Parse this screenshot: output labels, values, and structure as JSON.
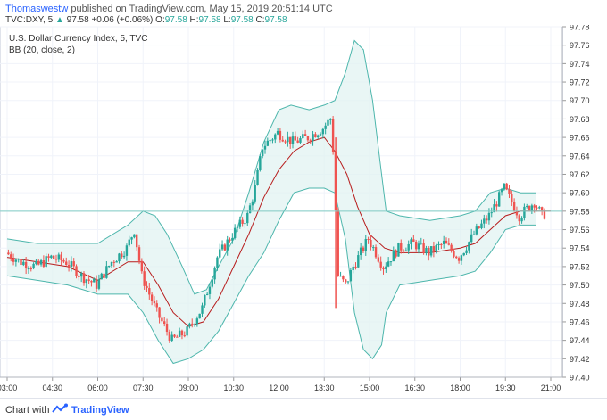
{
  "header": {
    "author": "Thomaswestw",
    "publish_text": "published on TradingView.com, May 15, 2019 20:51:14 UTC",
    "symbol": "TVC:DXY, 5",
    "last": "97.58",
    "change": "+0.06 (+0.06%)",
    "o_label": "O:",
    "o": "97.58",
    "h_label": "H:",
    "h": "97.58",
    "l_label": "L:",
    "l": "97.58",
    "c_label": "C:",
    "c": "97.58"
  },
  "legend": {
    "title": "U.S. Dollar Currency Index, 5, TVC",
    "indicator": "BB (20, close, 2)"
  },
  "footer": {
    "made_with": "Chart with",
    "brand": "TradingView"
  },
  "colors": {
    "up": "#26a69a",
    "down": "#ef5350",
    "bb_band": "#4db6ac",
    "bb_fill": "#e0f2f1",
    "basis": "#b71c1c",
    "price_line": "#80cbc4"
  },
  "chart_data": {
    "type": "candlestick",
    "title": "U.S. Dollar Currency Index, 5, TVC",
    "x_ticks": [
      "03:00",
      "04:30",
      "06:00",
      "07:30",
      "09:00",
      "10:30",
      "12:00",
      "13:30",
      "15:00",
      "16:30",
      "18:00",
      "19:30",
      "21:00"
    ],
    "y_ticks": [
      "97.78",
      "97.76",
      "97.74",
      "97.72",
      "97.70",
      "97.68",
      "97.66",
      "97.64",
      "97.62",
      "97.60",
      "97.58",
      "97.56",
      "97.54",
      "97.52",
      "97.50",
      "97.48",
      "97.46",
      "97.44",
      "97.42",
      "97.40"
    ],
    "ylim": [
      97.4,
      97.78
    ],
    "xlim_hours": [
      3,
      21
    ],
    "last_price": 97.58,
    "price_series": [
      [
        3.0,
        97.535
      ],
      [
        3.5,
        97.525
      ],
      [
        4.0,
        97.52
      ],
      [
        4.5,
        97.53
      ],
      [
        5.0,
        97.525
      ],
      [
        5.5,
        97.51
      ],
      [
        6.0,
        97.5
      ],
      [
        6.5,
        97.525
      ],
      [
        7.0,
        97.54
      ],
      [
        7.25,
        97.56
      ],
      [
        7.5,
        97.51
      ],
      [
        8.0,
        97.47
      ],
      [
        8.5,
        97.44
      ],
      [
        9.0,
        97.45
      ],
      [
        9.5,
        97.475
      ],
      [
        10.0,
        97.53
      ],
      [
        10.5,
        97.555
      ],
      [
        11.0,
        97.575
      ],
      [
        11.25,
        97.605
      ],
      [
        11.5,
        97.65
      ],
      [
        12.0,
        97.665
      ],
      [
        12.5,
        97.655
      ],
      [
        13.0,
        97.66
      ],
      [
        13.5,
        97.67
      ],
      [
        13.75,
        97.68
      ],
      [
        13.85,
        97.64
      ],
      [
        14.0,
        97.51
      ],
      [
        14.25,
        97.5
      ],
      [
        14.5,
        97.52
      ],
      [
        15.0,
        97.55
      ],
      [
        15.5,
        97.52
      ],
      [
        16.0,
        97.54
      ],
      [
        16.5,
        97.545
      ],
      [
        17.0,
        97.535
      ],
      [
        17.5,
        97.545
      ],
      [
        18.0,
        97.53
      ],
      [
        18.5,
        97.555
      ],
      [
        19.0,
        97.575
      ],
      [
        19.5,
        97.605
      ],
      [
        19.75,
        97.59
      ],
      [
        20.0,
        97.575
      ],
      [
        20.5,
        97.59
      ],
      [
        20.75,
        97.575
      ],
      [
        21.0,
        97.58
      ]
    ],
    "bb_basis": [
      [
        3.0,
        97.53
      ],
      [
        4.0,
        97.525
      ],
      [
        5.0,
        97.52
      ],
      [
        6.0,
        97.505
      ],
      [
        7.0,
        97.525
      ],
      [
        7.5,
        97.525
      ],
      [
        8.0,
        97.5
      ],
      [
        8.5,
        97.47
      ],
      [
        9.0,
        97.455
      ],
      [
        9.5,
        97.46
      ],
      [
        10.0,
        97.485
      ],
      [
        10.5,
        97.52
      ],
      [
        11.0,
        97.555
      ],
      [
        11.5,
        97.595
      ],
      [
        12.0,
        97.625
      ],
      [
        12.5,
        97.645
      ],
      [
        13.0,
        97.655
      ],
      [
        13.5,
        97.66
      ],
      [
        13.85,
        97.645
      ],
      [
        14.25,
        97.62
      ],
      [
        14.6,
        97.585
      ],
      [
        15.0,
        97.555
      ],
      [
        15.5,
        97.54
      ],
      [
        16.0,
        97.535
      ],
      [
        17.0,
        97.535
      ],
      [
        18.0,
        97.54
      ],
      [
        18.5,
        97.545
      ],
      [
        19.0,
        97.56
      ],
      [
        19.5,
        97.575
      ],
      [
        20.0,
        97.58
      ],
      [
        20.5,
        97.58
      ],
      [
        21.0,
        97.58
      ]
    ],
    "bb_upper": [
      [
        3.0,
        97.55
      ],
      [
        4.0,
        97.545
      ],
      [
        5.0,
        97.545
      ],
      [
        6.0,
        97.545
      ],
      [
        7.0,
        97.565
      ],
      [
        7.5,
        97.58
      ],
      [
        7.9,
        97.575
      ],
      [
        8.3,
        97.555
      ],
      [
        8.8,
        97.52
      ],
      [
        9.2,
        97.49
      ],
      [
        9.6,
        97.495
      ],
      [
        10.0,
        97.52
      ],
      [
        10.5,
        97.55
      ],
      [
        11.0,
        97.6
      ],
      [
        11.5,
        97.655
      ],
      [
        12.0,
        97.69
      ],
      [
        12.4,
        97.695
      ],
      [
        13.0,
        97.69
      ],
      [
        13.5,
        97.695
      ],
      [
        13.85,
        97.7
      ],
      [
        14.2,
        97.73
      ],
      [
        14.5,
        97.765
      ],
      [
        14.8,
        97.755
      ],
      [
        15.1,
        97.7
      ],
      [
        15.4,
        97.62
      ],
      [
        15.55,
        97.58
      ],
      [
        16.0,
        97.575
      ],
      [
        17.0,
        97.57
      ],
      [
        18.0,
        97.575
      ],
      [
        18.5,
        97.58
      ],
      [
        19.0,
        97.6
      ],
      [
        19.5,
        97.605
      ],
      [
        20.0,
        97.6
      ],
      [
        20.5,
        97.6
      ]
    ],
    "bb_lower": [
      [
        3.0,
        97.51
      ],
      [
        4.0,
        97.505
      ],
      [
        5.0,
        97.5
      ],
      [
        6.0,
        97.49
      ],
      [
        7.0,
        97.49
      ],
      [
        7.5,
        97.47
      ],
      [
        8.0,
        97.44
      ],
      [
        8.5,
        97.415
      ],
      [
        9.0,
        97.42
      ],
      [
        9.5,
        97.43
      ],
      [
        10.0,
        97.45
      ],
      [
        10.5,
        97.48
      ],
      [
        11.0,
        97.51
      ],
      [
        11.5,
        97.535
      ],
      [
        12.0,
        97.57
      ],
      [
        12.5,
        97.6
      ],
      [
        13.0,
        97.605
      ],
      [
        13.5,
        97.605
      ],
      [
        13.85,
        97.6
      ],
      [
        14.2,
        97.55
      ],
      [
        14.5,
        97.47
      ],
      [
        14.8,
        97.43
      ],
      [
        15.1,
        97.42
      ],
      [
        15.4,
        97.435
      ],
      [
        15.55,
        97.47
      ],
      [
        16.0,
        97.5
      ],
      [
        17.0,
        97.505
      ],
      [
        18.0,
        97.51
      ],
      [
        18.5,
        97.515
      ],
      [
        19.0,
        97.535
      ],
      [
        19.5,
        97.56
      ],
      [
        20.0,
        97.565
      ],
      [
        20.5,
        97.565
      ]
    ]
  }
}
